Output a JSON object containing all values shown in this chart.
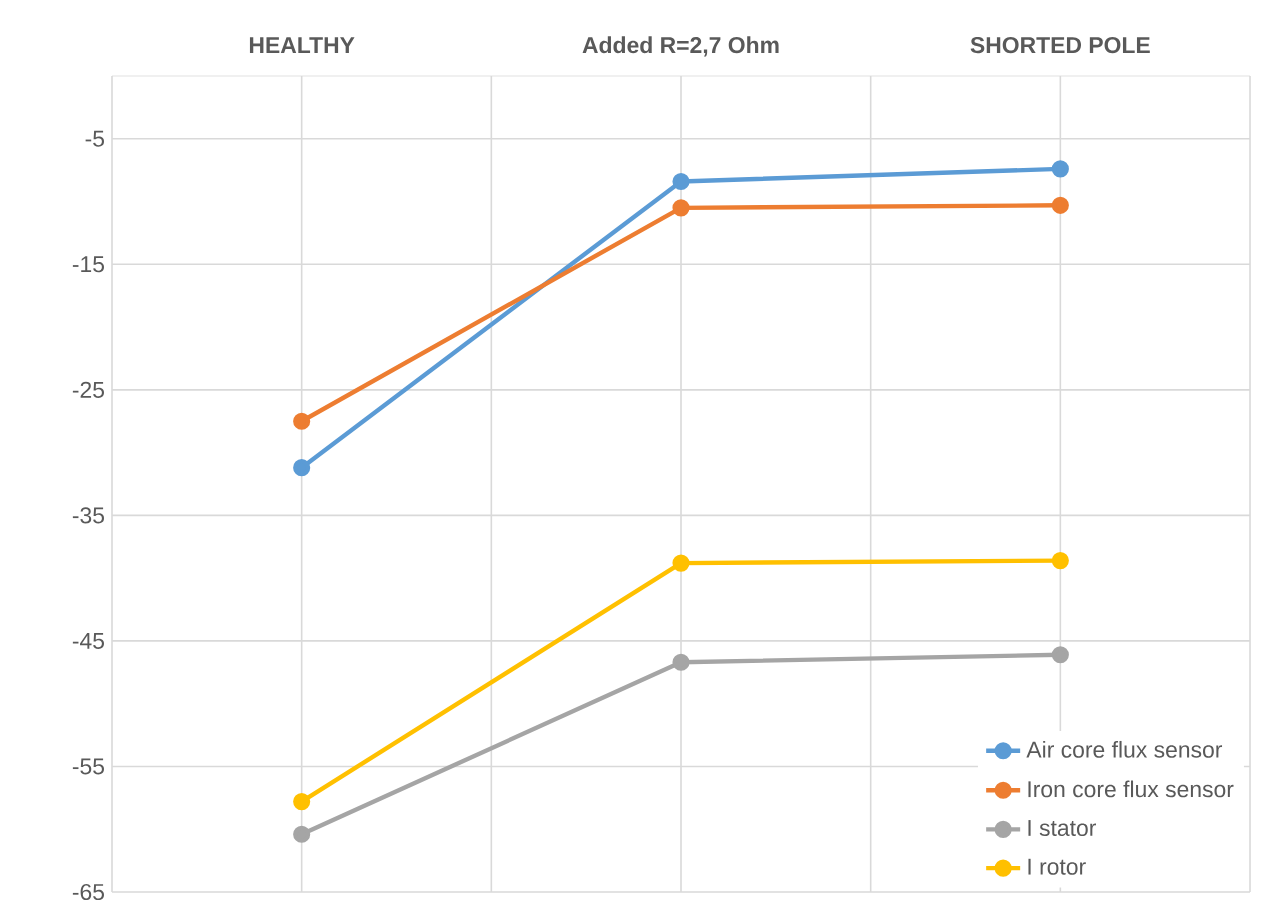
{
  "chart_data": {
    "type": "line",
    "categories": [
      "HEALTHY",
      "Added R=2,7 Ohm",
      "SHORTED POLE"
    ],
    "series": [
      {
        "name": "Air core flux sensor",
        "color": "#5b9bd5",
        "values": [
          -31.2,
          -8.4,
          -7.4
        ]
      },
      {
        "name": "Iron core flux sensor",
        "color": "#ed7d31",
        "values": [
          -27.5,
          -10.5,
          -10.3
        ]
      },
      {
        "name": "I stator",
        "color": "#a5a5a5",
        "values": [
          -60.4,
          -46.7,
          -46.1
        ]
      },
      {
        "name": "I rotor",
        "color": "#ffc000",
        "values": [
          -57.8,
          -38.8,
          -38.6
        ]
      }
    ],
    "ylim": [
      -65,
      0
    ],
    "yticks": [
      -65,
      -55,
      -45,
      -35,
      -25,
      -15,
      -5
    ],
    "grid": true,
    "legend": "bottom right",
    "marker": "circle",
    "line_style": "solid"
  }
}
